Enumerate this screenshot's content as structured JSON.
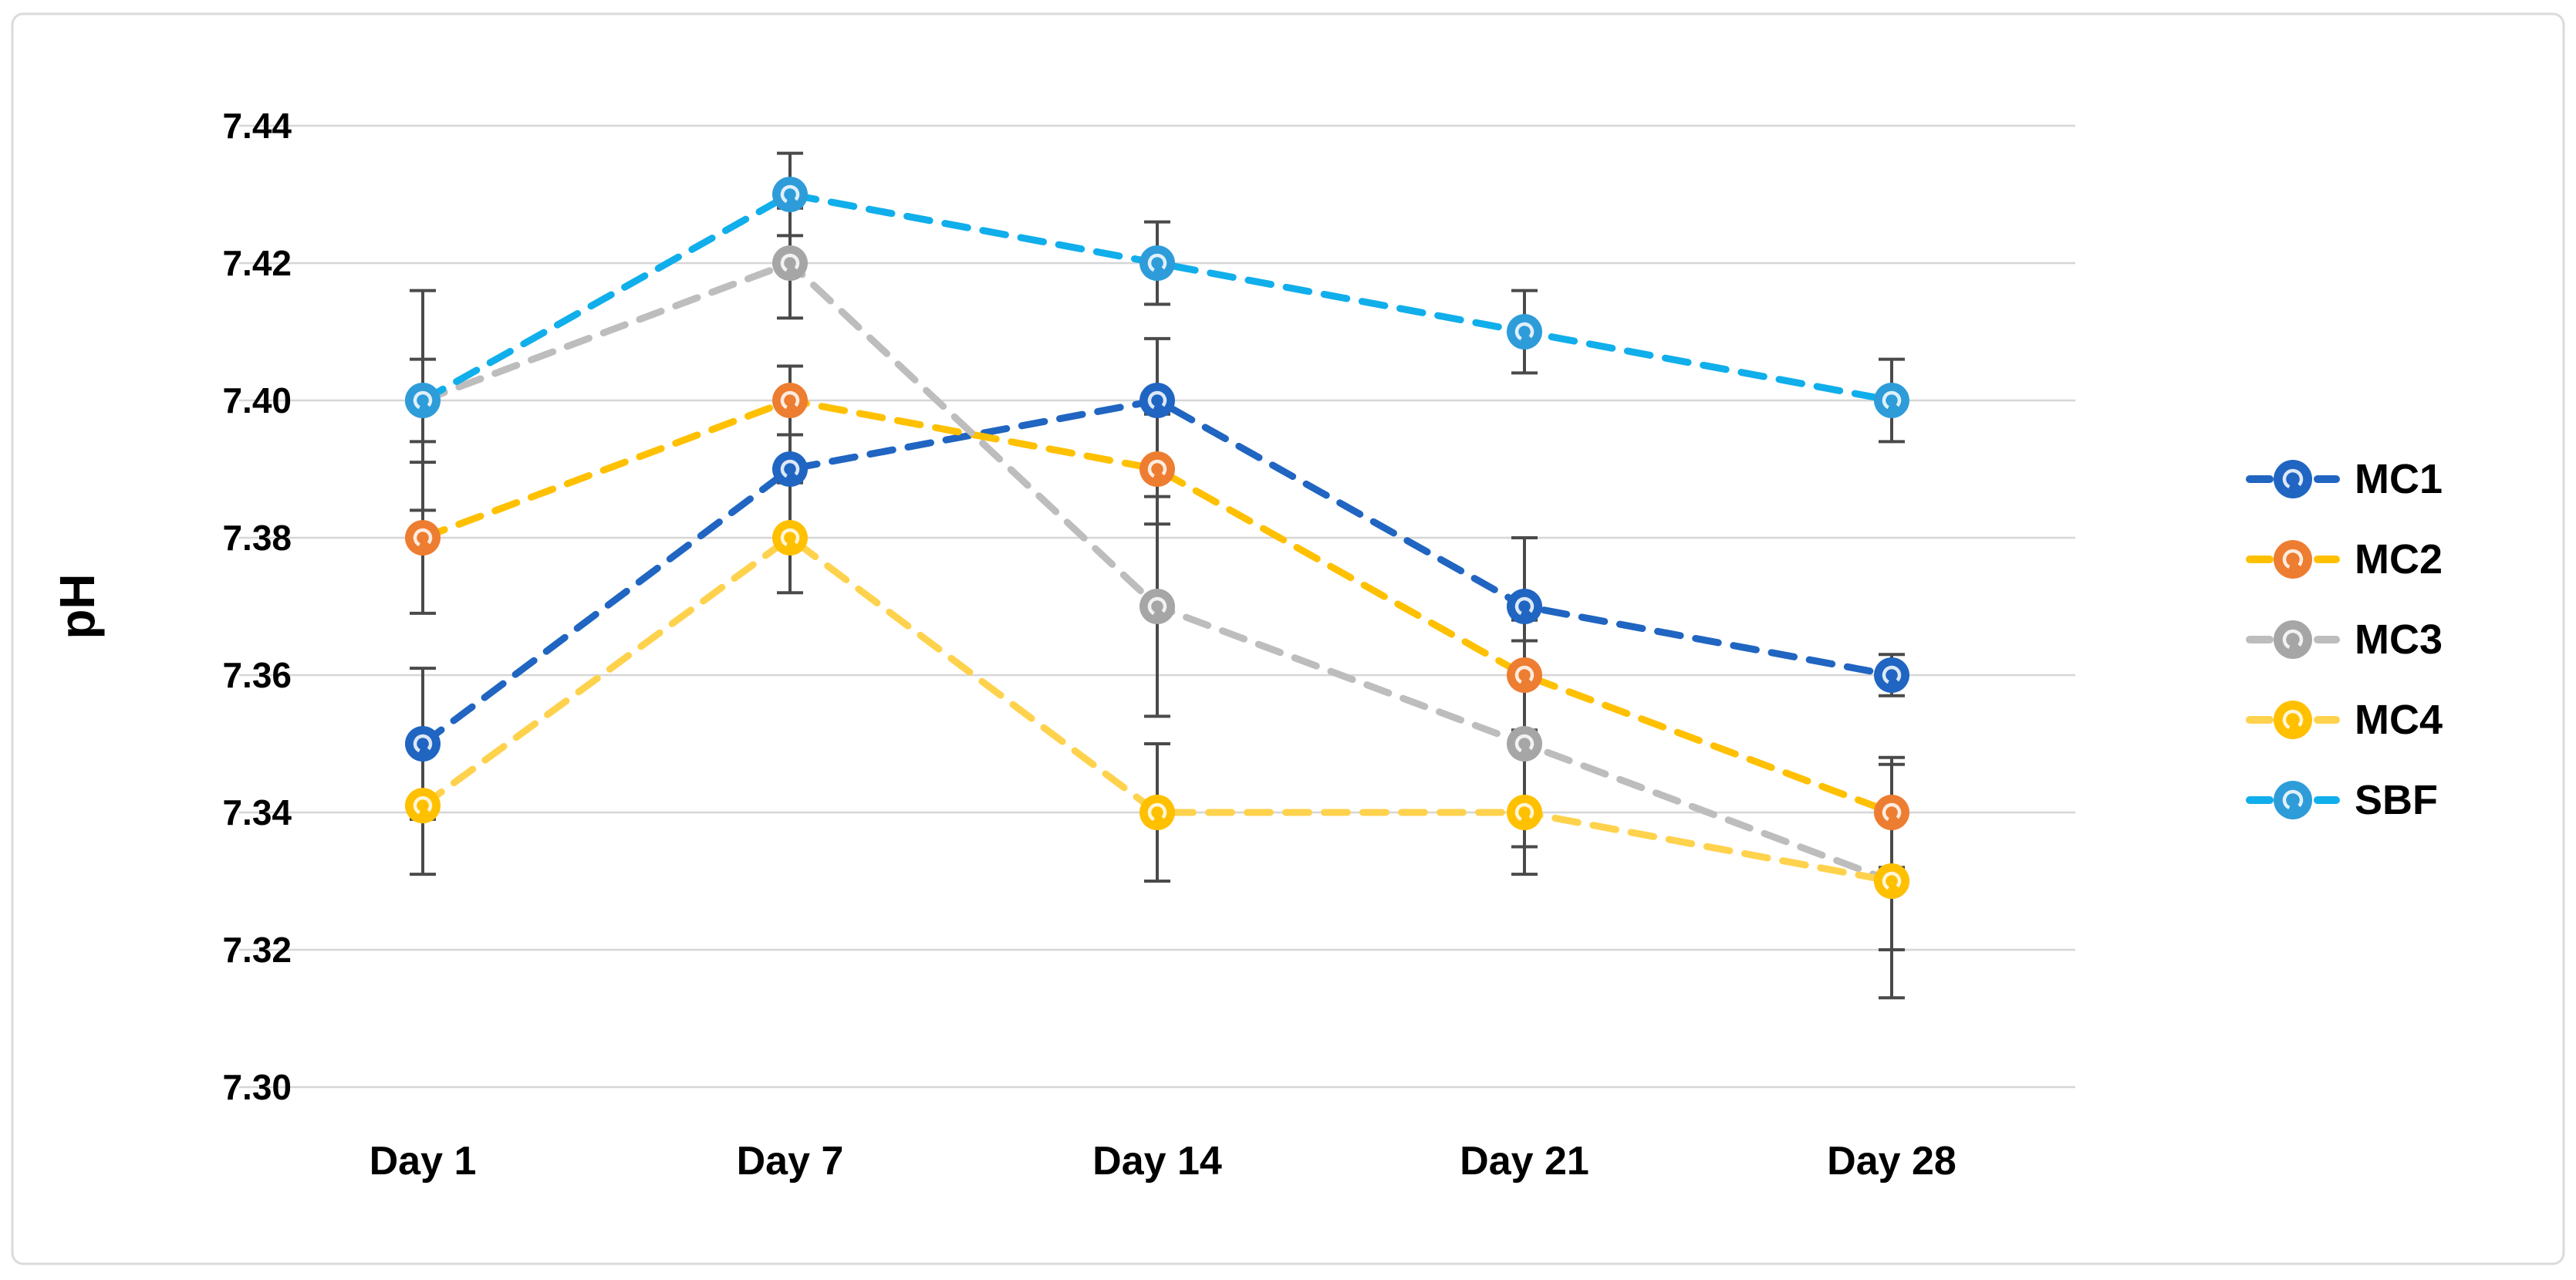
{
  "figure": {
    "border_color": "#DBDBDB",
    "background": "#FFFFFF",
    "gridline_color": "#D6D6D6",
    "error_bar_color": "#4A4A4A"
  },
  "chart_data": {
    "type": "line",
    "title": "",
    "xlabel": "",
    "ylabel": "pH",
    "line_style": "dashed",
    "grid": true,
    "legend_position": "right",
    "ylim": [
      7.3,
      7.44
    ],
    "ytick_step": 0.02,
    "ytick_labels": [
      "7.44",
      "7.42",
      "7.40",
      "7.38",
      "7.36",
      "7.34",
      "7.32",
      "7.30"
    ],
    "categories": [
      "Day 1",
      "Day 7",
      "Day 14",
      "Day 21",
      "Day 28"
    ],
    "series": [
      {
        "name": "MC1",
        "marker_color": "#2065C1",
        "line_color": "#2065C1",
        "values": [
          7.35,
          7.39,
          7.4,
          7.37,
          7.36
        ],
        "errors": [
          0.011,
          0.009,
          0.009,
          0.01,
          0.003
        ]
      },
      {
        "name": "MC2",
        "marker_color": "#ED7D31",
        "line_color": "#FFC000",
        "values": [
          7.38,
          7.4,
          7.39,
          7.36,
          7.34
        ],
        "errors": [
          0.011,
          0.005,
          0.008,
          0.008,
          0.008
        ]
      },
      {
        "name": "MC3",
        "marker_color": "#A6A6A6",
        "line_color": "#BDBDBD",
        "values": [
          7.4,
          7.42,
          7.37,
          7.35,
          7.33
        ],
        "errors": [
          0.006,
          0.008,
          0.016,
          0.015,
          0.01
        ]
      },
      {
        "name": "MC4",
        "marker_color": "#FFC000",
        "line_color": "#FFD24D",
        "values": [
          7.341,
          7.38,
          7.34,
          7.34,
          7.33
        ],
        "errors": [
          0.01,
          0.008,
          0.01,
          0.009,
          0.017
        ]
      },
      {
        "name": "SBF",
        "marker_color": "#2E9CD9",
        "line_color": "#10AEEB",
        "values": [
          7.4,
          7.43,
          7.42,
          7.41,
          7.4
        ],
        "errors": [
          0.016,
          0.006,
          0.006,
          0.006,
          0.006
        ]
      }
    ]
  }
}
